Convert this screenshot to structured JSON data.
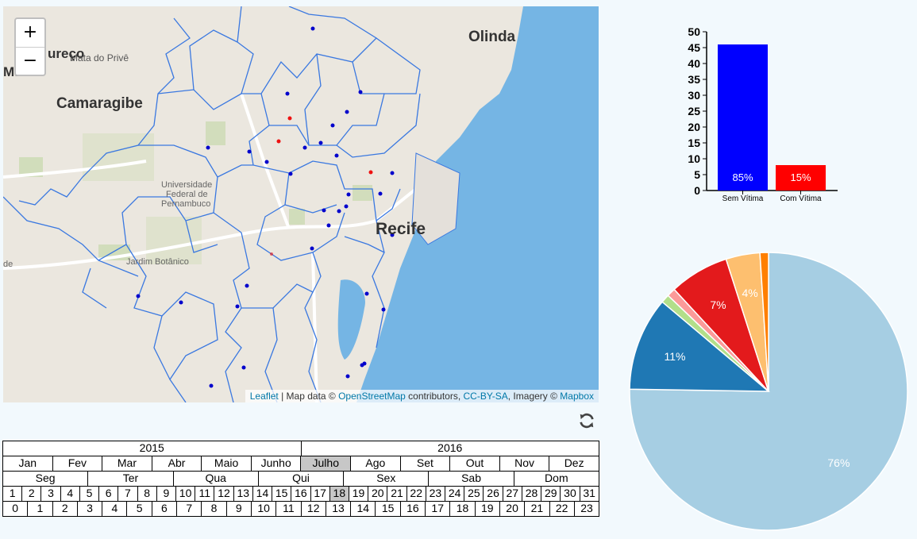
{
  "map": {
    "zoom_in_label": "+",
    "zoom_out_label": "−",
    "attribution": {
      "leaflet": "Leaflet",
      "text_1": " | Map data © ",
      "osm": "OpenStreetMap",
      "text_2": " contributors, ",
      "license": "CC-BY-SA",
      "text_3": ", Imagery © ",
      "mapbox": "Mapbox"
    },
    "labels": {
      "olinda": "Olinda",
      "camaragibe": "Camaragibe",
      "recife": "Recife",
      "mata_do_prive": "Mata do Privê",
      "universidade_1": "Universidade",
      "universidade_2": "Federal de",
      "universidade_3": "Pernambuco",
      "jardim_botanico": "Jardim Botânico",
      "sao_lourenco_1": "ureço",
      "sao_lourenco_2": "Ma",
      "fragment": "de"
    }
  },
  "calendar": {
    "years": [
      "2015",
      "2016"
    ],
    "months": [
      "Jan",
      "Fev",
      "Mar",
      "Abr",
      "Maio",
      "Junho",
      "Julho",
      "Ago",
      "Set",
      "Out",
      "Nov",
      "Dez"
    ],
    "selected_month": "Julho",
    "weekdays": [
      "Seg",
      "Ter",
      "Qua",
      "Qui",
      "Sex",
      "Sab",
      "Dom"
    ],
    "days": [
      "1",
      "2",
      "3",
      "4",
      "5",
      "6",
      "7",
      "8",
      "9",
      "10",
      "11",
      "12",
      "13",
      "14",
      "15",
      "16",
      "17",
      "18",
      "19",
      "20",
      "21",
      "22",
      "23",
      "24",
      "25",
      "26",
      "27",
      "28",
      "29",
      "30",
      "31"
    ],
    "selected_day": "18",
    "hours": [
      "0",
      "1",
      "2",
      "3",
      "4",
      "5",
      "6",
      "7",
      "8",
      "9",
      "10",
      "11",
      "12",
      "13",
      "14",
      "15",
      "16",
      "17",
      "18",
      "19",
      "20",
      "21",
      "22",
      "23"
    ]
  },
  "chart_data": [
    {
      "type": "bar",
      "categories": [
        "Sem Vítima",
        "Com Vítima"
      ],
      "values": [
        46,
        8
      ],
      "data_labels": [
        "85%",
        "15%"
      ],
      "colors": [
        "#0000ff",
        "#ff0000"
      ],
      "ylim": [
        0,
        50
      ],
      "yticks": [
        "0",
        "5",
        "10",
        "15",
        "20",
        "25",
        "30",
        "35",
        "40",
        "45",
        "50"
      ]
    },
    {
      "type": "pie",
      "values": [
        76,
        11,
        1,
        1,
        7,
        4,
        1
      ],
      "labels": [
        "76%",
        "11%",
        "",
        "",
        "7%",
        "4%",
        ""
      ],
      "colors": [
        "#a6cee3",
        "#1f78b4",
        "#b2df8a",
        "#fb9a99",
        "#e31a1c",
        "#fdbf6f",
        "#ff7f00"
      ]
    }
  ],
  "colors": {
    "water": "#75b5e4",
    "boundary": "#3a78e0",
    "dot_blue": "#0000cc",
    "dot_red": "#ee1111"
  },
  "icons": {
    "reset": "refresh-icon"
  }
}
